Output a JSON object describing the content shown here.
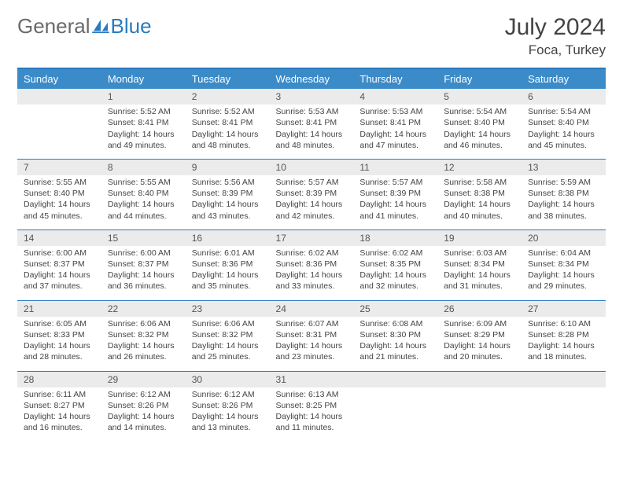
{
  "brand": {
    "first": "General",
    "second": "Blue"
  },
  "title": "July 2024",
  "location": "Foca, Turkey",
  "colors": {
    "header_bg": "#3b8bc9",
    "header_border": "#2a7ac0",
    "daynum_bg": "#ebebeb",
    "text": "#444444",
    "brand_blue": "#2a7ac0"
  },
  "weekdays": [
    "Sunday",
    "Monday",
    "Tuesday",
    "Wednesday",
    "Thursday",
    "Friday",
    "Saturday"
  ],
  "weeks": [
    [
      null,
      {
        "n": "1",
        "sr": "5:52 AM",
        "ss": "8:41 PM",
        "dl": "14 hours and 49 minutes."
      },
      {
        "n": "2",
        "sr": "5:52 AM",
        "ss": "8:41 PM",
        "dl": "14 hours and 48 minutes."
      },
      {
        "n": "3",
        "sr": "5:53 AM",
        "ss": "8:41 PM",
        "dl": "14 hours and 48 minutes."
      },
      {
        "n": "4",
        "sr": "5:53 AM",
        "ss": "8:41 PM",
        "dl": "14 hours and 47 minutes."
      },
      {
        "n": "5",
        "sr": "5:54 AM",
        "ss": "8:40 PM",
        "dl": "14 hours and 46 minutes."
      },
      {
        "n": "6",
        "sr": "5:54 AM",
        "ss": "8:40 PM",
        "dl": "14 hours and 45 minutes."
      }
    ],
    [
      {
        "n": "7",
        "sr": "5:55 AM",
        "ss": "8:40 PM",
        "dl": "14 hours and 45 minutes."
      },
      {
        "n": "8",
        "sr": "5:55 AM",
        "ss": "8:40 PM",
        "dl": "14 hours and 44 minutes."
      },
      {
        "n": "9",
        "sr": "5:56 AM",
        "ss": "8:39 PM",
        "dl": "14 hours and 43 minutes."
      },
      {
        "n": "10",
        "sr": "5:57 AM",
        "ss": "8:39 PM",
        "dl": "14 hours and 42 minutes."
      },
      {
        "n": "11",
        "sr": "5:57 AM",
        "ss": "8:39 PM",
        "dl": "14 hours and 41 minutes."
      },
      {
        "n": "12",
        "sr": "5:58 AM",
        "ss": "8:38 PM",
        "dl": "14 hours and 40 minutes."
      },
      {
        "n": "13",
        "sr": "5:59 AM",
        "ss": "8:38 PM",
        "dl": "14 hours and 38 minutes."
      }
    ],
    [
      {
        "n": "14",
        "sr": "6:00 AM",
        "ss": "8:37 PM",
        "dl": "14 hours and 37 minutes."
      },
      {
        "n": "15",
        "sr": "6:00 AM",
        "ss": "8:37 PM",
        "dl": "14 hours and 36 minutes."
      },
      {
        "n": "16",
        "sr": "6:01 AM",
        "ss": "8:36 PM",
        "dl": "14 hours and 35 minutes."
      },
      {
        "n": "17",
        "sr": "6:02 AM",
        "ss": "8:36 PM",
        "dl": "14 hours and 33 minutes."
      },
      {
        "n": "18",
        "sr": "6:02 AM",
        "ss": "8:35 PM",
        "dl": "14 hours and 32 minutes."
      },
      {
        "n": "19",
        "sr": "6:03 AM",
        "ss": "8:34 PM",
        "dl": "14 hours and 31 minutes."
      },
      {
        "n": "20",
        "sr": "6:04 AM",
        "ss": "8:34 PM",
        "dl": "14 hours and 29 minutes."
      }
    ],
    [
      {
        "n": "21",
        "sr": "6:05 AM",
        "ss": "8:33 PM",
        "dl": "14 hours and 28 minutes."
      },
      {
        "n": "22",
        "sr": "6:06 AM",
        "ss": "8:32 PM",
        "dl": "14 hours and 26 minutes."
      },
      {
        "n": "23",
        "sr": "6:06 AM",
        "ss": "8:32 PM",
        "dl": "14 hours and 25 minutes."
      },
      {
        "n": "24",
        "sr": "6:07 AM",
        "ss": "8:31 PM",
        "dl": "14 hours and 23 minutes."
      },
      {
        "n": "25",
        "sr": "6:08 AM",
        "ss": "8:30 PM",
        "dl": "14 hours and 21 minutes."
      },
      {
        "n": "26",
        "sr": "6:09 AM",
        "ss": "8:29 PM",
        "dl": "14 hours and 20 minutes."
      },
      {
        "n": "27",
        "sr": "6:10 AM",
        "ss": "8:28 PM",
        "dl": "14 hours and 18 minutes."
      }
    ],
    [
      {
        "n": "28",
        "sr": "6:11 AM",
        "ss": "8:27 PM",
        "dl": "14 hours and 16 minutes."
      },
      {
        "n": "29",
        "sr": "6:12 AM",
        "ss": "8:26 PM",
        "dl": "14 hours and 14 minutes."
      },
      {
        "n": "30",
        "sr": "6:12 AM",
        "ss": "8:26 PM",
        "dl": "14 hours and 13 minutes."
      },
      {
        "n": "31",
        "sr": "6:13 AM",
        "ss": "8:25 PM",
        "dl": "14 hours and 11 minutes."
      },
      null,
      null,
      null
    ]
  ],
  "labels": {
    "sunrise": "Sunrise:",
    "sunset": "Sunset:",
    "daylight": "Daylight:"
  }
}
